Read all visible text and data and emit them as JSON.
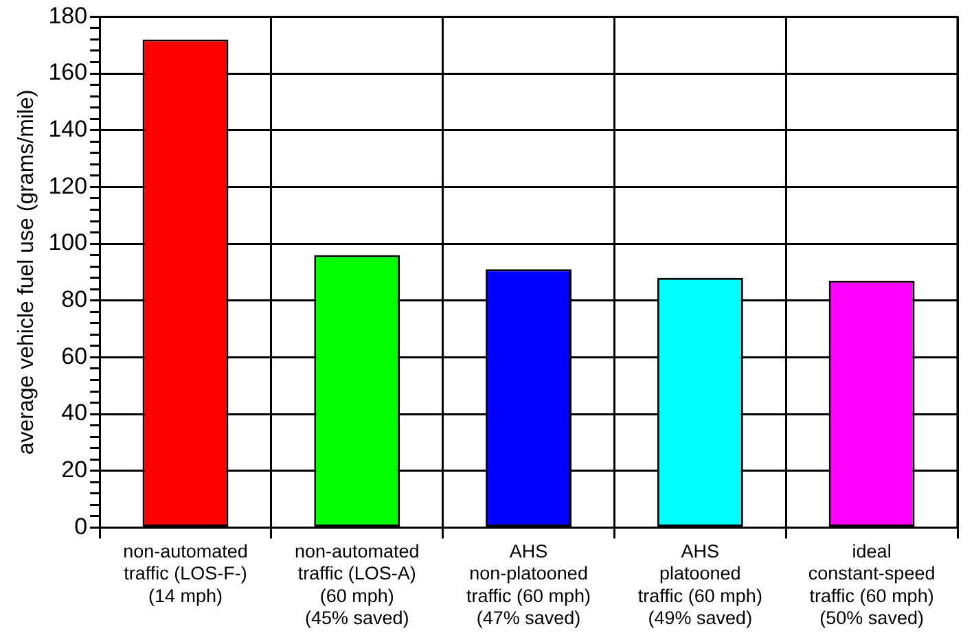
{
  "chart_data": {
    "type": "bar",
    "ylabel": "average vehicle fuel use (grams/mile)",
    "categories": [
      "non-automated\ntraffic (LOS-F-)\n(14 mph)",
      "non-automated\ntraffic (LOS-A)\n(60 mph)\n(45% saved)",
      "AHS\nnon-platooned\ntraffic (60 mph)\n(47% saved)",
      "AHS\nplatooned\ntraffic (60 mph)\n(49% saved)",
      "ideal\nconstant-speed\ntraffic (60 mph)\n(50% saved)"
    ],
    "values": [
      172,
      96,
      91,
      88,
      87
    ],
    "colors": [
      "#ff0000",
      "#00ff00",
      "#0000ff",
      "#00ffff",
      "#ff00ff"
    ],
    "ylim": [
      0,
      180
    ],
    "yticks": [
      0,
      {
        "value": 4,
        "label": null
      },
      {
        "value": 8,
        "label": null
      },
      {
        "value": 12,
        "label": null
      },
      {
        "value": 16,
        "label": null
      },
      20,
      {
        "value": 24,
        "label": null
      },
      {
        "value": 28,
        "label": null
      },
      {
        "value": 32,
        "label": null
      },
      {
        "value": 36,
        "label": null
      },
      40,
      {
        "value": 44,
        "label": null
      },
      {
        "value": 48,
        "label": null
      },
      {
        "value": 52,
        "label": null
      },
      {
        "value": 56,
        "label": null
      },
      60,
      {
        "value": 64,
        "label": null
      },
      {
        "value": 68,
        "label": null
      },
      {
        "value": 72,
        "label": null
      },
      {
        "value": 76,
        "label": null
      },
      80,
      {
        "value": 84,
        "label": null
      },
      {
        "value": 88,
        "label": null
      },
      {
        "value": 92,
        "label": null
      },
      {
        "value": 96,
        "label": null
      },
      100,
      {
        "value": 104,
        "label": null
      },
      {
        "value": 108,
        "label": null
      },
      {
        "value": 112,
        "label": null
      },
      {
        "value": 116,
        "label": null
      },
      120,
      {
        "value": 124,
        "label": null
      },
      {
        "value": 128,
        "label": null
      },
      {
        "value": 132,
        "label": null
      },
      {
        "value": 136,
        "label": null
      },
      140,
      {
        "value": 144,
        "label": null
      },
      {
        "value": 148,
        "label": null
      },
      {
        "value": 152,
        "label": null
      },
      {
        "value": 156,
        "label": null
      },
      160,
      {
        "value": 164,
        "label": null
      },
      {
        "value": 168,
        "label": null
      },
      {
        "value": 172,
        "label": null
      },
      {
        "value": 176,
        "label": null
      },
      180
    ],
    "grid": true
  }
}
